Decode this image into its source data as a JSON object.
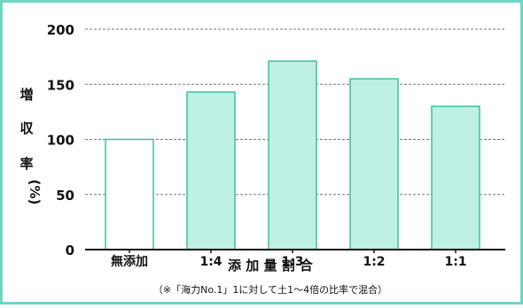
{
  "chart_data": {
    "type": "bar",
    "title": "",
    "categories": [
      "無添加",
      "1:4",
      "1:3",
      "1:2",
      "1:1"
    ],
    "values": [
      100,
      143,
      171,
      155,
      130
    ],
    "ylim": [
      0,
      200
    ],
    "yticks": [
      0,
      50,
      100,
      150,
      200
    ],
    "grid": true,
    "xlabel": "添 加 量 割 合",
    "ylabel_chars": [
      "増",
      "収",
      "率",
      "(%)"
    ],
    "note": "（※「海力No.1」1に対して土1～4倍の比率で混合）",
    "colors": {
      "border": "#6fd6c6",
      "bar_fill": "#bff0e4",
      "bar_stroke": "#3fbf9f",
      "control_fill": "#ffffff",
      "axis": "#111111",
      "grid": "#777777"
    }
  }
}
